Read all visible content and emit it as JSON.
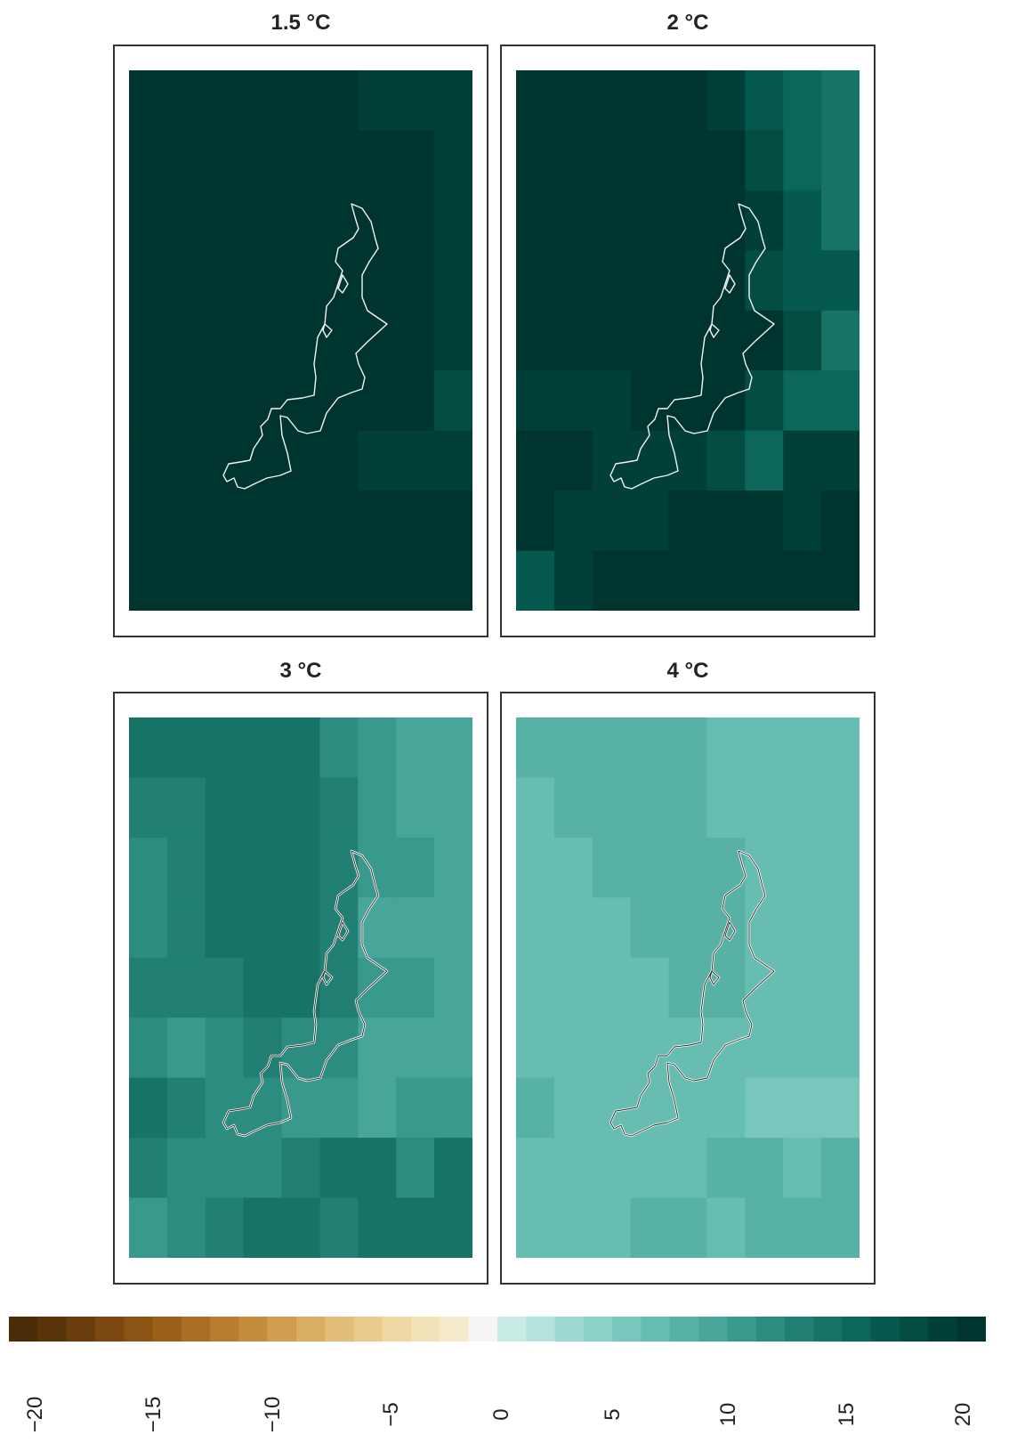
{
  "panels": [
    {
      "title": "1.5 °C",
      "grid": [
        [
          19,
          19,
          19,
          19,
          19,
          19,
          18,
          18,
          18
        ],
        [
          19,
          19,
          19,
          19,
          19,
          19,
          19,
          19,
          18
        ],
        [
          19,
          19,
          19,
          19,
          19,
          19,
          19,
          19,
          18
        ],
        [
          19,
          19,
          19,
          19,
          19,
          19,
          19,
          19,
          18
        ],
        [
          19,
          19,
          19,
          19,
          19,
          19,
          19,
          19,
          18
        ],
        [
          19,
          19,
          19,
          19,
          19,
          19,
          19,
          19,
          17
        ],
        [
          19,
          19,
          19,
          19,
          19,
          19,
          18,
          18,
          18
        ],
        [
          19,
          19,
          19,
          19,
          19,
          19,
          19,
          19,
          19
        ],
        [
          19,
          19,
          19,
          19,
          19,
          19,
          19,
          19,
          19
        ]
      ]
    },
    {
      "title": "2 °C",
      "grid": [
        [
          20,
          20,
          20,
          20,
          20,
          18,
          16,
          15,
          14
        ],
        [
          19,
          20,
          20,
          20,
          20,
          19,
          17,
          15,
          14
        ],
        [
          19,
          19,
          20,
          20,
          20,
          20,
          18,
          16,
          14
        ],
        [
          19,
          19,
          20,
          20,
          20,
          19,
          17,
          16,
          16
        ],
        [
          19,
          19,
          19,
          20,
          20,
          20,
          19,
          17,
          14
        ],
        [
          18,
          18,
          18,
          19,
          19,
          19,
          17,
          15,
          15
        ],
        [
          20,
          19,
          18,
          18,
          18,
          17,
          15,
          18,
          18
        ],
        [
          19,
          18,
          18,
          18,
          19,
          20,
          20,
          18,
          20
        ],
        [
          16,
          18,
          19,
          20,
          20,
          19,
          20,
          20,
          20
        ]
      ]
    },
    {
      "title": "3 °C",
      "grid": [
        [
          13,
          14,
          14,
          14,
          13,
          11,
          10,
          9,
          9
        ],
        [
          12,
          12,
          13,
          13,
          13,
          12,
          10,
          9,
          9
        ],
        [
          11,
          12,
          13,
          14,
          13,
          12,
          10,
          10,
          9
        ],
        [
          11,
          12,
          13,
          13,
          14,
          12,
          9,
          9,
          9
        ],
        [
          12,
          12,
          12,
          13,
          13,
          12,
          10,
          10,
          9
        ],
        [
          11,
          10,
          11,
          12,
          11,
          11,
          9,
          9,
          9
        ],
        [
          13,
          12,
          11,
          11,
          10,
          10,
          9,
          10,
          10
        ],
        [
          12,
          11,
          11,
          11,
          12,
          13,
          13,
          11,
          13
        ],
        [
          10,
          11,
          12,
          14,
          13,
          12,
          13,
          13,
          14
        ]
      ]
    },
    {
      "title": "4 °C",
      "grid": [
        [
          8,
          8,
          8,
          8,
          8,
          7,
          6,
          6,
          6
        ],
        [
          7,
          8,
          8,
          8,
          8,
          7,
          6,
          6,
          6
        ],
        [
          7,
          7,
          8,
          8,
          8,
          8,
          7,
          6,
          6
        ],
        [
          7,
          7,
          7,
          8,
          8,
          8,
          7,
          6,
          6
        ],
        [
          7,
          7,
          7,
          7,
          8,
          8,
          7,
          6,
          6
        ],
        [
          7,
          7,
          7,
          7,
          7,
          6,
          6,
          6,
          6
        ],
        [
          8,
          7,
          7,
          7,
          7,
          6,
          5,
          5,
          5
        ],
        [
          7,
          7,
          7,
          7,
          7,
          8,
          8,
          7,
          8
        ],
        [
          6,
          7,
          7,
          8,
          8,
          7,
          8,
          8,
          8
        ]
      ]
    }
  ],
  "legend": {
    "ticks": [
      "−20",
      "−15",
      "−10",
      "−5",
      "0",
      "5",
      "10",
      "15",
      "20"
    ],
    "min": -20,
    "max": 20,
    "colors": [
      "#4a2c08",
      "#5a3409",
      "#6a3e0c",
      "#7a4810",
      "#8a5414",
      "#9a6019",
      "#aa6e22",
      "#b87d2e",
      "#c48d3c",
      "#cf9e4e",
      "#d9ae62",
      "#e1bd77",
      "#e8cb8d",
      "#eed8a3",
      "#f2e2b8",
      "#f5ebcc",
      "#f5f5f5",
      "#c8ebe5",
      "#b3e3dc",
      "#9fdad2",
      "#8cd1c7",
      "#79c7bc",
      "#67bdb1",
      "#57b1a5",
      "#48a599",
      "#3a998d",
      "#2d8c80",
      "#218073",
      "#167366",
      "#0d665a",
      "#06594e",
      "#034d43",
      "#014039",
      "#00352f"
    ]
  }
}
